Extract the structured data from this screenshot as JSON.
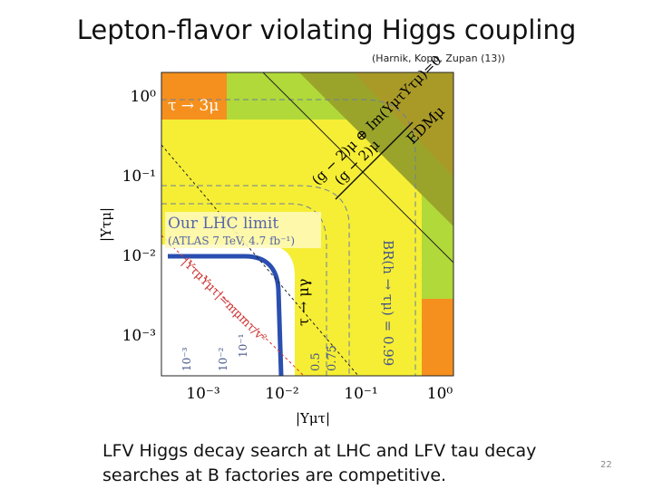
{
  "header": {
    "title": "Lepton-flavor violating Higgs coupling",
    "citation": "(Harnik, Kopp, Zupan (13))"
  },
  "figure": {
    "y_axis_label": "|Yτμ|",
    "x_axis_label": "|Yμτ|",
    "y_tick_labels": [
      "10⁰",
      "10⁻¹",
      "10⁻²",
      "10⁻³"
    ],
    "x_tick_labels": [
      "10⁻³",
      "10⁻²",
      "10⁻¹",
      "10⁰"
    ],
    "annotations": {
      "tau_3mu": "τ → 3μ",
      "g2_im": "(g − 2)μ ⊕ Im(YμτYτμ)=0",
      "edm": "EDMμ",
      "g2": "(g − 2)μ",
      "lhc_limit": "Our LHC limit",
      "lhc_detail": "(ATLAS 7 TeV, 4.7 fb⁻¹)",
      "tau_mugamma": "τ → μγ",
      "br": "BR(h → τμ) = 0.99",
      "br_075": "0.75",
      "br_05": "0.5",
      "naturalness": "|YτμYμτ|=mμmτ/v²",
      "contour_1": "10⁻³",
      "contour_2": "10⁻²",
      "contour_3": "10⁻¹"
    }
  },
  "caption": "LFV Higgs decay search at LHC and LFV tau decay searches at B factories are competitive.",
  "page_number": "22"
}
